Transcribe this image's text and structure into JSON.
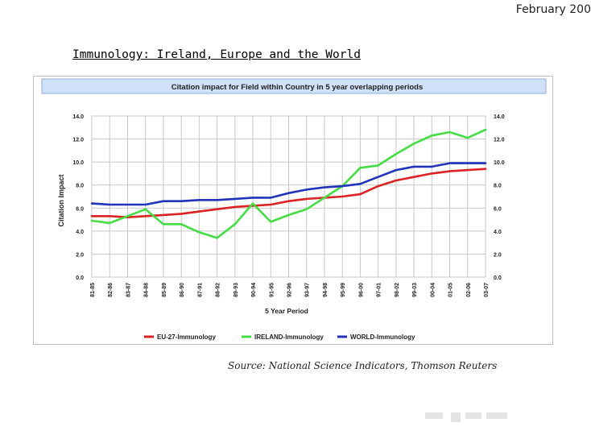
{
  "header": {
    "date": "February 200"
  },
  "slide": {
    "title": "Immunology: Ireland, Europe and the World",
    "source": "Source: National Science Indicators, Thomson Reuters"
  },
  "chart_data": {
    "type": "line",
    "title": "Citation impact for Field within Country in 5 year overlapping periods",
    "xlabel": "5 Year Period",
    "ylabel": "Citation Impact",
    "ylim": [
      0,
      14
    ],
    "yticks": [
      "0.0",
      "2.0",
      "4.0",
      "6.0",
      "8.0",
      "10.0",
      "12.0",
      "14.0"
    ],
    "grid": true,
    "legend_position": "bottom",
    "categories": [
      "81-85",
      "82-86",
      "83-87",
      "84-88",
      "85-89",
      "86-90",
      "87-91",
      "88-92",
      "89-93",
      "90-94",
      "91-95",
      "92-96",
      "93-97",
      "94-98",
      "95-99",
      "96-00",
      "97-01",
      "98-02",
      "99-03",
      "00-04",
      "01-05",
      "02-06",
      "03-07"
    ],
    "series": [
      {
        "name": "EU-27-Immunology",
        "color": "#dd2222",
        "values": [
          5.3,
          5.3,
          5.2,
          5.3,
          5.4,
          5.5,
          5.7,
          5.9,
          6.1,
          6.2,
          6.3,
          6.6,
          6.8,
          6.9,
          7.0,
          7.2,
          7.9,
          8.4,
          8.7,
          9.0,
          9.2,
          9.3,
          9.4
        ]
      },
      {
        "name": "IRELAND-Immunology",
        "color": "#44dd44",
        "values": [
          4.9,
          4.7,
          5.3,
          5.9,
          4.6,
          4.6,
          3.9,
          3.4,
          4.6,
          6.4,
          4.8,
          5.4,
          5.9,
          6.9,
          7.9,
          9.5,
          9.7,
          10.7,
          11.6,
          12.3,
          12.6,
          12.1,
          12.8
        ]
      },
      {
        "name": "WORLD-Immunology",
        "color": "#2233bb",
        "values": [
          6.4,
          6.3,
          6.3,
          6.3,
          6.6,
          6.6,
          6.7,
          6.7,
          6.8,
          6.9,
          6.9,
          7.3,
          7.6,
          7.8,
          7.9,
          8.1,
          8.7,
          9.3,
          9.6,
          9.6,
          9.9,
          9.9,
          9.9
        ]
      }
    ]
  }
}
